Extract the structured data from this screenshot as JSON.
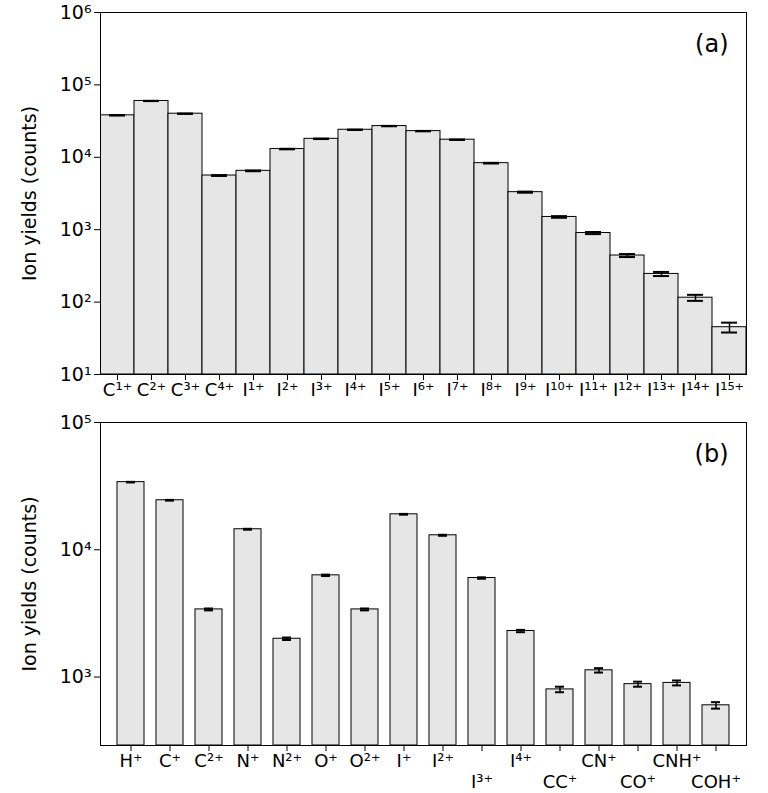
{
  "chart_data": [
    {
      "type": "bar",
      "y_label": "Ion yields (counts)",
      "annotations": [
        "(a)"
      ],
      "categories": [
        "C¹⁺",
        "C²⁺",
        "C³⁺",
        "C⁴⁺",
        "I¹⁺",
        "I²⁺",
        "I³⁺",
        "I⁴⁺",
        "I⁵⁺",
        "I⁶⁺",
        "I⁷⁺",
        "I⁸⁺",
        "I⁹⁺",
        "I¹⁰⁺",
        "I¹¹⁺",
        "I¹²⁺",
        "I¹³⁺",
        "I¹⁴⁺",
        "I¹⁵⁺"
      ],
      "values": [
        38000,
        60000,
        40000,
        5600,
        6500,
        13000,
        18000,
        24000,
        27000,
        23000,
        17500,
        8300,
        3300,
        1500,
        900,
        440,
        245,
        115,
        45
      ],
      "errors": [
        200,
        250,
        200,
        75,
        80,
        115,
        135,
        155,
        165,
        150,
        130,
        90,
        57,
        39,
        30,
        21,
        16,
        11,
        7
      ],
      "color": "#e6e6e6",
      "log": "y",
      "grid": false,
      "ylim": [
        10,
        1000000
      ],
      "yticks": [
        {
          "value": 10,
          "label": "10¹"
        },
        {
          "value": 100,
          "label": "10²"
        },
        {
          "value": 1000,
          "label": "10³"
        },
        {
          "value": 10000,
          "label": "10⁴"
        },
        {
          "value": 100000,
          "label": "10⁵"
        },
        {
          "value": 1000000,
          "label": "10⁶"
        }
      ]
    },
    {
      "type": "bar",
      "y_label": "Ion yields (counts)",
      "annotations": [
        "(b)"
      ],
      "categories": [
        "H⁺",
        "C⁺",
        "C²⁺",
        "N⁺",
        "N²⁺",
        "O⁺",
        "O²⁺",
        "I⁺",
        "I²⁺",
        "I³⁺",
        "I⁴⁺",
        "CC⁺",
        "CN⁺",
        "CO⁺",
        "CNH⁺",
        "COH⁺"
      ],
      "values": [
        34000,
        24500,
        3400,
        14500,
        2000,
        6300,
        3400,
        19000,
        13000,
        6000,
        2300,
        800,
        1130,
        880,
        900,
        600
      ],
      "errors": [
        185,
        155,
        58,
        120,
        45,
        80,
        58,
        138,
        114,
        77,
        48,
        40,
        45,
        40,
        40,
        35
      ],
      "color": "#e6e6e6",
      "log": "y",
      "grid": false,
      "ylim": [
        290,
        100000
      ],
      "yticks": [
        {
          "value": 1000,
          "label": "10³"
        },
        {
          "value": 10000,
          "label": "10⁴"
        },
        {
          "value": 100000,
          "label": "10⁵"
        }
      ]
    }
  ]
}
